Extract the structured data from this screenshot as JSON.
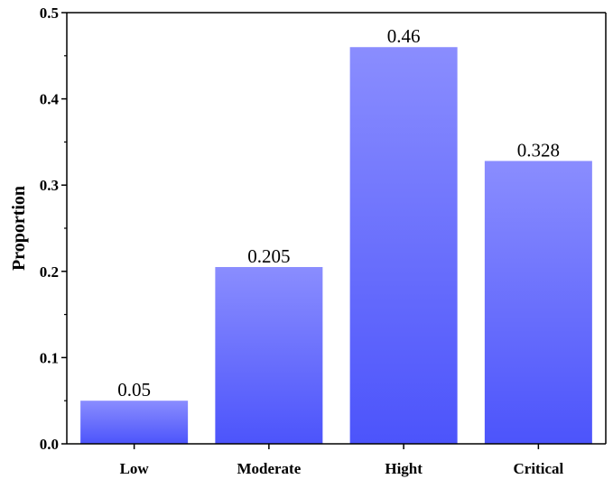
{
  "chart_data": {
    "type": "bar",
    "title": "",
    "xlabel": "",
    "ylabel": "Proportion",
    "categories": [
      "Low",
      "Moderate",
      "Hight",
      "Critical"
    ],
    "values": [
      0.05,
      0.205,
      0.46,
      0.328
    ],
    "data_labels": [
      "0.05",
      "0.205",
      "0.46",
      "0.328"
    ],
    "ylim": [
      0,
      0.5
    ],
    "yticks": [
      "0.0",
      "0.1",
      "0.2",
      "0.3",
      "0.4",
      "0.5"
    ],
    "grid": false,
    "legend": "none",
    "colors": {
      "bar_top": "#8a8dfe",
      "bar_bottom": "#4c54fb",
      "axis": "#000000"
    }
  }
}
